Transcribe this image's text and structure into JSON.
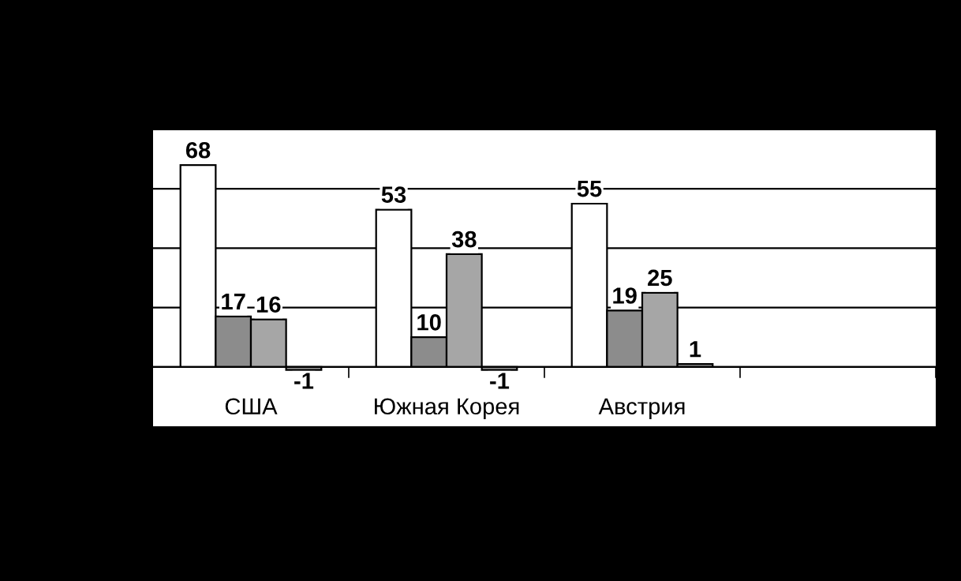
{
  "chart_data": {
    "type": "bar",
    "categories": [
      "США",
      "Южная Корея",
      "Австрия",
      null
    ],
    "series": [
      {
        "color": "#ffffff",
        "values": [
          68,
          53,
          55,
          null
        ]
      },
      {
        "color": "#8c8c8c",
        "values": [
          17,
          10,
          19,
          null
        ]
      },
      {
        "color": "#a6a6a6",
        "values": [
          16,
          38,
          25,
          null
        ]
      },
      {
        "color": "#999999",
        "values": [
          -1,
          -1,
          1,
          null
        ]
      }
    ],
    "ylim": [
      -20,
      80
    ],
    "yticks": [
      {
        "value": 0,
        "label": null
      },
      {
        "value": 20,
        "label": null
      },
      {
        "value": 40,
        "label": null
      },
      {
        "value": 60,
        "label": null
      },
      {
        "value": 80,
        "label": null
      }
    ],
    "grid": "y",
    "data_labels": true
  }
}
